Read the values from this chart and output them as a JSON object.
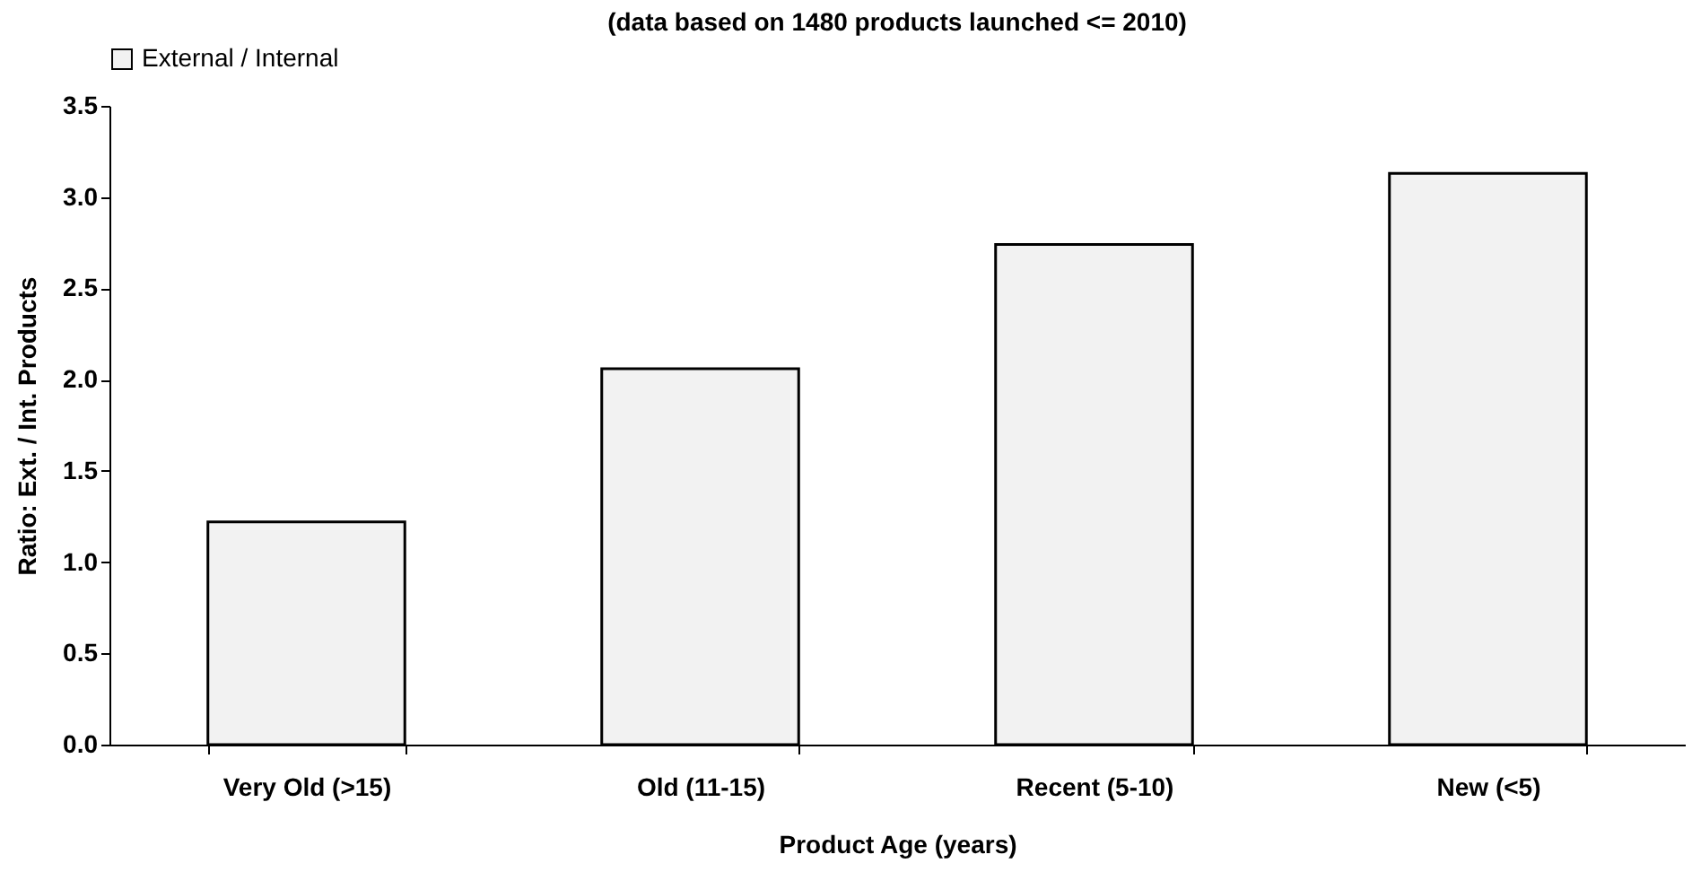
{
  "chart_data": {
    "type": "bar",
    "title": "(data based on 1480 products launched <= 2010)",
    "xlabel": "Product Age (years)",
    "ylabel": "Ratio: Ext. / Int. Products",
    "categories": [
      "Very Old (>15)",
      "Old (11-15)",
      "Recent (5-10)",
      "New (<5)"
    ],
    "series": [
      {
        "name": "External / Internal",
        "color": "#f2f2f2",
        "values": [
          1.22,
          2.06,
          2.74,
          3.13
        ]
      }
    ],
    "ylim": [
      0,
      3.5
    ],
    "yticks": [
      {
        "value": 0,
        "label": "0.0"
      },
      {
        "value": 0.5,
        "label": "0.5"
      },
      {
        "value": 1,
        "label": "1.0"
      },
      {
        "value": 1.5,
        "label": "1.5"
      },
      {
        "value": 2,
        "label": "2.0"
      },
      {
        "value": 2.5,
        "label": "2.5"
      },
      {
        "value": 3,
        "label": "3.0"
      },
      {
        "value": 3.5,
        "label": "3.5"
      }
    ],
    "grid": false,
    "legend": "top"
  }
}
